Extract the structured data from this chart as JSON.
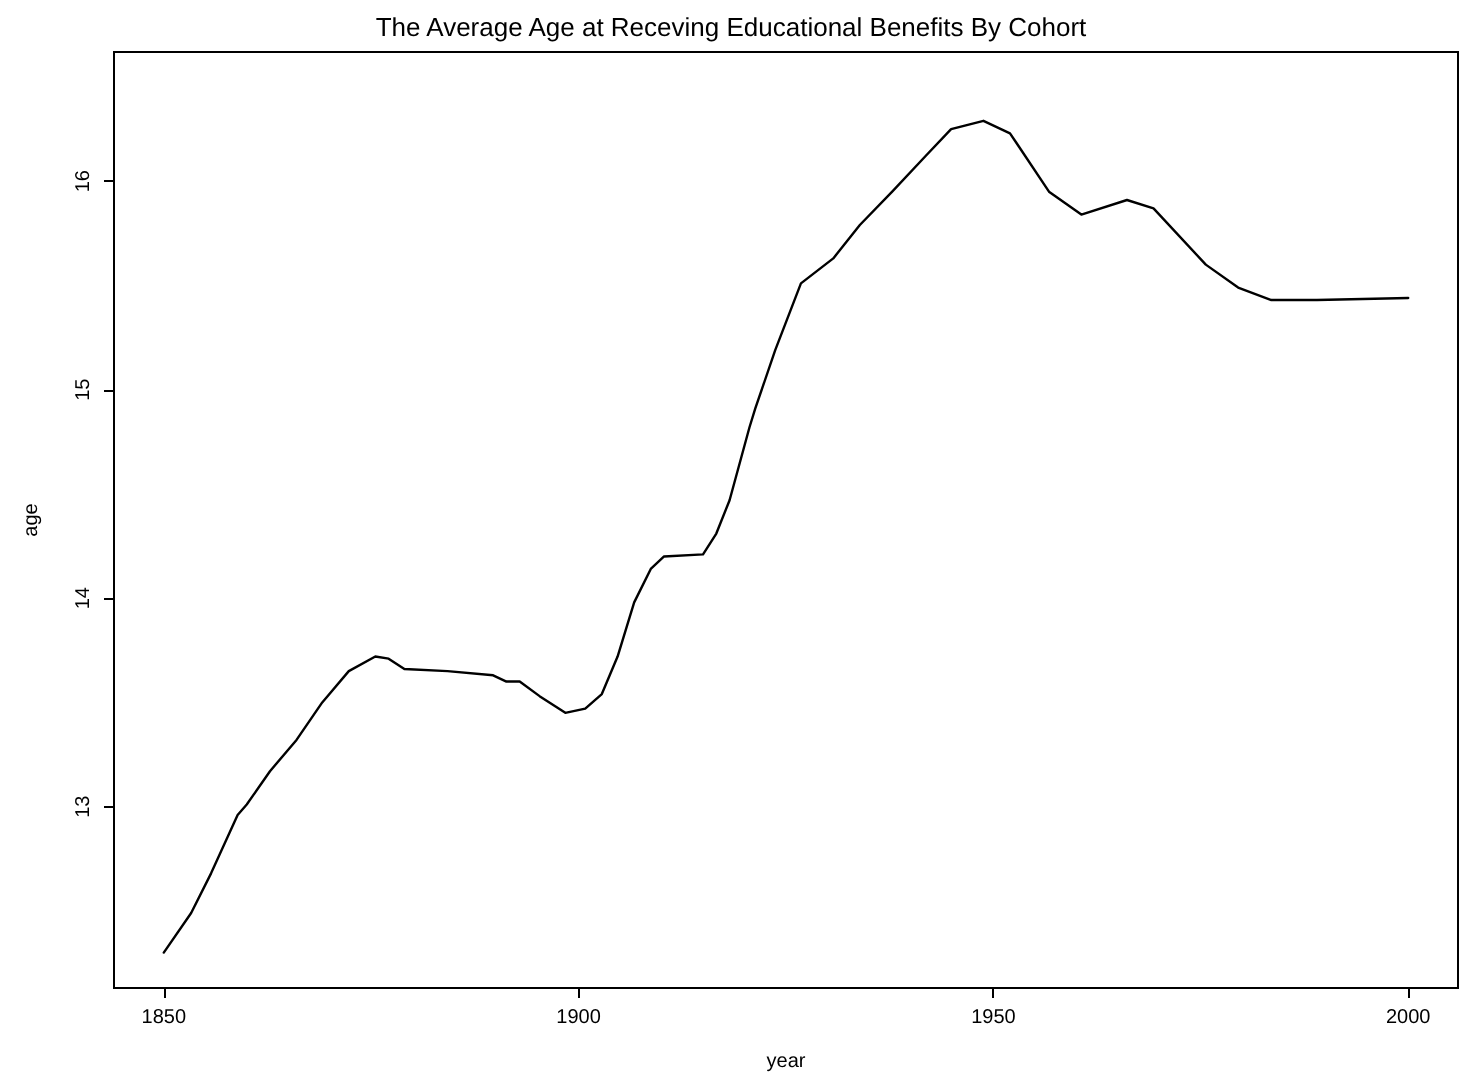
{
  "chart_data": {
    "type": "line",
    "title": "The Average Age at Receving Educational Benefits By Cohort",
    "xlabel": "year",
    "ylabel": "age",
    "x": [
      1850,
      1853.3,
      1855.7,
      1858.9,
      1860,
      1862.8,
      1866,
      1869.1,
      1872.3,
      1875.5,
      1877.1,
      1879,
      1884.2,
      1889.7,
      1891.3,
      1892.9,
      1895.3,
      1898.4,
      1900.8,
      1902.8,
      1904.7,
      1906.7,
      1908.7,
      1910.3,
      1915,
      1916.6,
      1918.2,
      1920.6,
      1921.3,
      1923.7,
      1926.8,
      1930.7,
      1933.9,
      1937.8,
      1941.8,
      1944.9,
      1948.8,
      1952,
      1956.7,
      1960.6,
      1966.1,
      1969.3,
      1975.6,
      1979.5,
      1983.5,
      1989,
      2000
    ],
    "series": [
      {
        "color": "#000000",
        "values": [
          12.3,
          12.49,
          12.68,
          12.96,
          13.01,
          13.17,
          13.32,
          13.5,
          13.65,
          13.72,
          13.71,
          13.66,
          13.65,
          13.63,
          13.6,
          13.6,
          13.53,
          13.45,
          13.47,
          13.54,
          13.72,
          13.98,
          14.14,
          14.2,
          14.21,
          14.31,
          14.47,
          14.82,
          14.91,
          15.19,
          15.51,
          15.63,
          15.79,
          15.95,
          16.12,
          16.25,
          16.29,
          16.23,
          15.95,
          15.84,
          15.91,
          15.87,
          15.6,
          15.49,
          15.43,
          15.43,
          15.44
        ]
      }
    ],
    "xlim": [
      1844,
      2006
    ],
    "xticks": [
      1850,
      1900,
      1950,
      2000
    ],
    "ylim": [
      12.13,
      16.62
    ],
    "yticks": [
      13,
      14,
      15,
      16
    ],
    "grid": false,
    "marker": "none",
    "line_style": "solid"
  }
}
